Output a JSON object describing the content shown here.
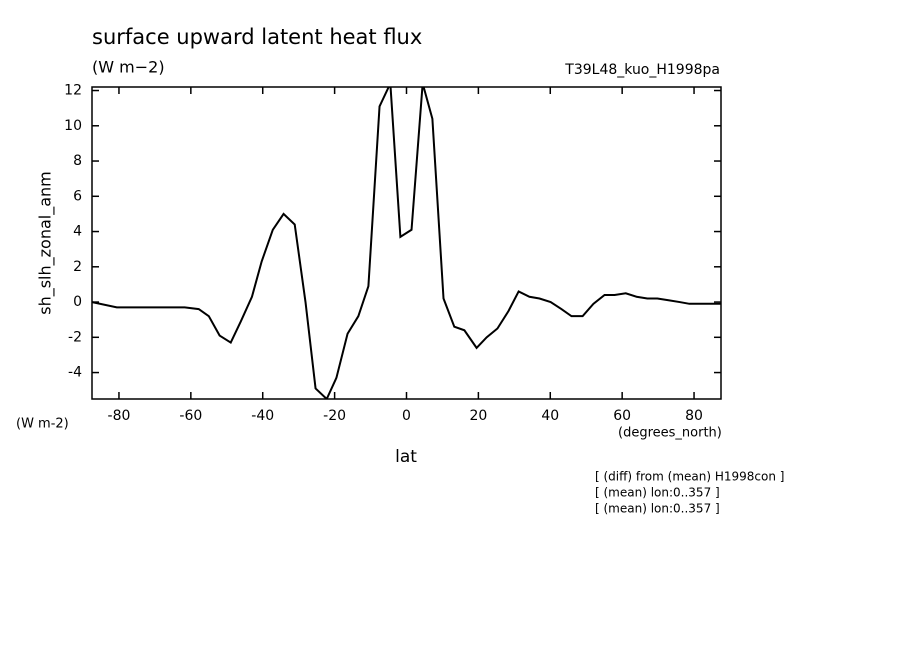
{
  "chart_data": {
    "type": "line",
    "title": "surface upward latent heat flux",
    "units": "(W m−2)",
    "run_label": "T39L48_kuo_H1998pa",
    "ylabel": "sh_slh_zonal_anm",
    "yunits": "(W m-2)",
    "xunits": "(degrees_north)",
    "xlabel": "lat",
    "notes": [
      "[ (diff) from (mean) H1998con ]",
      "[ (mean) lon:0..357 ]",
      "[ (mean) lon:0..357 ]"
    ],
    "x": [
      -87.5,
      -80.6,
      -61.7,
      -57.8,
      -55,
      -52,
      -48.9,
      -46.1,
      -43,
      -40.3,
      -37.2,
      -34.2,
      -31.1,
      -28.1,
      -25.3,
      -22.2,
      -19.5,
      -16.4,
      -13.4,
      -10.6,
      -7.5,
      -4.5,
      -1.7,
      1.4,
      4.5,
      7.2,
      10.3,
      13.3,
      16.1,
      19.5,
      22.3,
      25.3,
      28.4,
      31.2,
      34.2,
      37,
      40.1,
      43.1,
      45.9,
      49,
      52,
      55.1,
      57.9,
      61,
      64,
      67,
      69.8,
      72.9,
      76,
      78.7,
      81.8,
      87.5
    ],
    "values": [
      0,
      -0.3,
      -0.3,
      -0.4,
      -0.8,
      -1.9,
      -2.3,
      -1.1,
      0.3,
      2.3,
      4.1,
      5.0,
      4.4,
      0,
      -4.9,
      -5.5,
      -4.3,
      -1.8,
      -0.8,
      0.9,
      11.1,
      12.4,
      3.7,
      4.1,
      12.4,
      10.4,
      0.2,
      -1.4,
      -1.6,
      -2.6,
      -2,
      -1.5,
      -0.5,
      0.6,
      0.3,
      0.2,
      0,
      -0.4,
      -0.8,
      -0.8,
      -0.1,
      0.4,
      0.4,
      0.5,
      0.3,
      0.2,
      0.2,
      0.1,
      0,
      -0.1,
      -0.1,
      -0.1
    ],
    "color": "#000000",
    "xlim": [
      -87.5,
      87.5
    ],
    "ylim": [
      -5.5,
      12.2
    ],
    "xticks": [
      -80,
      -60,
      -40,
      -20,
      0,
      20,
      40,
      60,
      80
    ],
    "yticks": [
      -4,
      -2,
      0,
      2,
      4,
      6,
      8,
      10,
      12
    ]
  }
}
